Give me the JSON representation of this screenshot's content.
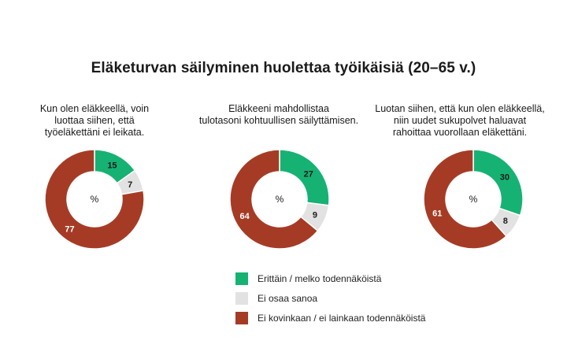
{
  "title": "Eläketurvan säilyminen huolettaa työikäisiä (20–65 v.)",
  "colors": {
    "likely": "#16b273",
    "dont_know": "#e2e2e2",
    "unlikely": "#a63b25"
  },
  "legend": [
    {
      "label": "Erittäin / melko todennäköistä",
      "color": "#16b273"
    },
    {
      "label": "Ei osaa sanoa",
      "color": "#e2e2e2"
    },
    {
      "label": "Ei kovinkaan / ei lainkaan todennäköistä",
      "color": "#a63b25"
    }
  ],
  "chart_data": [
    {
      "type": "pie",
      "title": "Kun olen eläkkeellä, voin luottaa siihen, että työeläkettäni ei leikata.",
      "caption_lines": [
        "Kun olen eläkkeellä, voin",
        "luottaa siihen, että",
        "työeläkettäni ei leikata."
      ],
      "center_label": "%",
      "categories": [
        "Erittäin / melko todennäköistä",
        "Ei osaa sanoa",
        "Ei kovinkaan / ei lainkaan todennäköistä"
      ],
      "values": [
        15,
        7,
        77
      ]
    },
    {
      "type": "pie",
      "title": "Eläkkeeni mahdollistaa tulotasoni kohtuullisen säilyttämisen.",
      "caption_lines": [
        "Eläkkeeni mahdollistaa",
        "tulotasoni kohtuullisen säilyttämisen."
      ],
      "center_label": "%",
      "categories": [
        "Erittäin / melko todennäköistä",
        "Ei osaa sanoa",
        "Ei kovinkaan / ei lainkaan todennäköistä"
      ],
      "values": [
        27,
        9,
        64
      ]
    },
    {
      "type": "pie",
      "title": "Luotan siihen, että kun olen eläkkeellä, niin uudet sukupolvet haluavat rahoittaa vuorollaan eläkettäni.",
      "caption_lines": [
        "Luotan siihen, että kun olen eläkkeellä,",
        "niin uudet sukupolvet haluavat",
        "rahoittaa vuorollaan eläkettäni."
      ],
      "center_label": "%",
      "categories": [
        "Erittäin / melko todennäköistä",
        "Ei osaa sanoa",
        "Ei kovinkaan / ei lainkaan todennäköistä"
      ],
      "values": [
        30,
        8,
        61
      ]
    }
  ]
}
